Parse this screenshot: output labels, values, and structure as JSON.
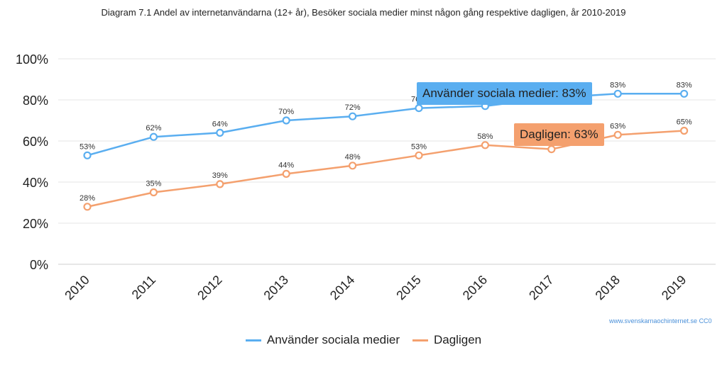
{
  "title": "Diagram 7.1 Andel av internetanvändarna (12+ år), Besöker sociala medier minst någon gång respektive dagligen, år 2010-2019",
  "credit": "www.svenskarnaochinternet.se CC0",
  "colors": {
    "series1": "#5aaef0",
    "series2": "#f4a06e",
    "grid": "#e6e6e6"
  },
  "tooltips": [
    {
      "text": "Använder sociala medier: 83%",
      "series": 0,
      "index": 8
    },
    {
      "text": "Dagligen: 63%",
      "series": 1,
      "index": 8
    }
  ],
  "chart_data": {
    "type": "line",
    "categories": [
      "2010",
      "2011",
      "2012",
      "2013",
      "2014",
      "2015",
      "2016",
      "2017",
      "2018",
      "2019"
    ],
    "series": [
      {
        "name": "Använder sociala medier",
        "values": [
          53,
          62,
          64,
          70,
          72,
          76,
          77,
          81,
          83,
          83
        ],
        "labels": [
          "53%",
          "62%",
          "64%",
          "70%",
          "72%",
          "76%",
          "77%",
          "81%",
          "83%",
          "83%"
        ]
      },
      {
        "name": "Dagligen",
        "values": [
          28,
          35,
          39,
          44,
          48,
          53,
          58,
          56,
          63,
          65
        ],
        "labels": [
          "28%",
          "35%",
          "39%",
          "44%",
          "48%",
          "53%",
          "58%",
          "56%",
          "63%",
          "65%"
        ]
      }
    ],
    "yticks": [
      "0%",
      "20%",
      "40%",
      "60%",
      "80%",
      "100%"
    ],
    "ylim": [
      0,
      100
    ],
    "grid": true,
    "legend": "bottom"
  }
}
